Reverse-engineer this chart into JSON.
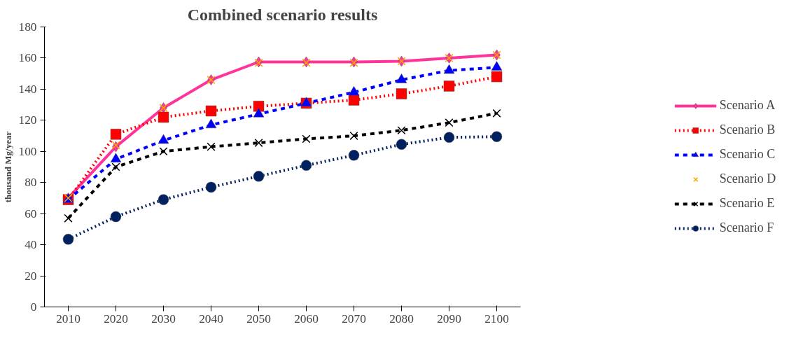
{
  "chart_data": {
    "type": "line",
    "title": "Combined scenario results",
    "ylabel": "thousand Mg/year",
    "categories": [
      "2010",
      "2020",
      "2030",
      "2040",
      "2050",
      "2060",
      "2070",
      "2080",
      "2090",
      "2100"
    ],
    "ylim": [
      0,
      180
    ],
    "yticks": [
      0,
      20,
      40,
      60,
      80,
      100,
      120,
      140,
      160,
      180
    ],
    "grid": false,
    "legend": "right",
    "series": [
      {
        "name": "Scenario A",
        "color": "#ff3399",
        "marker": "diamond",
        "line_style": "solid",
        "values": [
          70,
          103,
          128,
          146,
          157.5,
          157.5,
          157.5,
          158,
          160,
          162
        ]
      },
      {
        "name": "Scenario B",
        "color": "#ff0000",
        "marker": "square",
        "line_style": "dotted",
        "values": [
          69,
          111,
          122,
          126,
          129,
          131,
          133,
          137,
          142,
          148
        ]
      },
      {
        "name": "Scenario C",
        "color": "#0000ff",
        "marker": "triangle",
        "line_style": "dashed",
        "values": [
          69,
          95,
          107,
          117,
          124,
          131,
          138,
          146,
          152,
          154
        ]
      },
      {
        "name": "Scenario D",
        "type": "scatter",
        "color": "#ffa500",
        "marker": "cross",
        "values": [
          70,
          104,
          128,
          146,
          157,
          157,
          157,
          158,
          160,
          162
        ]
      },
      {
        "name": "Scenario E",
        "color": "#000000",
        "marker": "cross",
        "line_style": "dashed",
        "values": [
          57,
          90,
          100,
          103,
          105.5,
          108,
          110,
          113.5,
          118.5,
          124.5
        ]
      },
      {
        "name": "Scenario F",
        "color": "#002060",
        "marker": "circle",
        "line_style": "dotted",
        "values": [
          43.5,
          58,
          69,
          77,
          84,
          91,
          97.5,
          104.5,
          109,
          109.5
        ]
      }
    ]
  }
}
